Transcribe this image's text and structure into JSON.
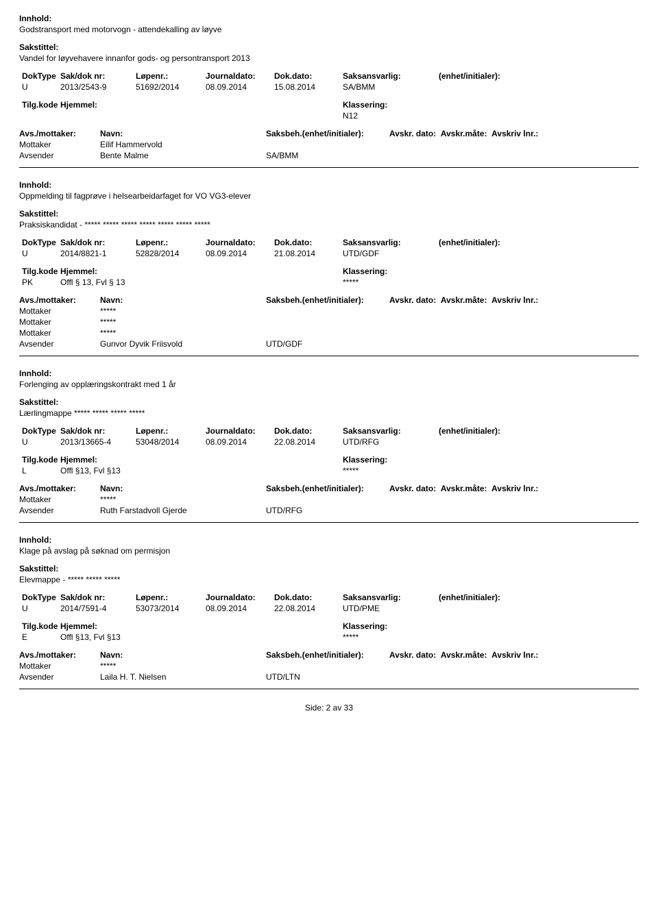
{
  "labels": {
    "innhold": "Innhold:",
    "sakstittel": "Sakstittel:",
    "doktype": "DokType",
    "sakdoknr": "Sak/dok nr:",
    "lopenr": "Løpenr.:",
    "journaldato": "Journaldato:",
    "dokdato": "Dok.dato:",
    "saksansvarlig": "Saksansvarlig:",
    "enhet": "(enhet/initialer):",
    "tilgkode": "Tilg.kode",
    "hjemmel": "Hjemmel:",
    "klassering": "Klassering:",
    "avsmottaker": "Avs./mottaker:",
    "navn": "Navn:",
    "saksbeh": "Saksbeh.(enhet/initialer):",
    "avskrdato": "Avskr. dato:",
    "avskrmate": "Avskr.måte:",
    "avskrivlnr": "Avskriv lnr.:",
    "mottaker": "Mottaker",
    "avsender": "Avsender"
  },
  "entries": [
    {
      "innhold": "Godstransport med motorvogn - attendekalling av løyve",
      "sakstittel": "Vandel for løyvehavere innanfor gods- og persontransport 2013",
      "doktype": "U",
      "sakdoknr": "2013/2543-9",
      "lopenr": "51692/2014",
      "journaldato": "08.09.2014",
      "dokdato": "15.08.2014",
      "saksansvarlig": "SA/BMM",
      "tilgkode": "",
      "hjemmel": "",
      "klassering": "N12",
      "parties": [
        {
          "role": "Mottaker",
          "name": "Eilif Hammervold",
          "saksbeh": ""
        },
        {
          "role": "Avsender",
          "name": "Bente Malme",
          "saksbeh": "SA/BMM"
        }
      ]
    },
    {
      "innhold": "Oppmelding til fagprøve i helsearbeidarfaget for VO VG3-elever",
      "sakstittel": "Praksiskandidat - ***** ***** ***** ***** ***** ***** *****",
      "doktype": "U",
      "sakdoknr": "2014/8821-1",
      "lopenr": "52828/2014",
      "journaldato": "08.09.2014",
      "dokdato": "21.08.2014",
      "saksansvarlig": "UTD/GDF",
      "tilgkode": "PK",
      "hjemmel": "Offl § 13, Fvl § 13",
      "klassering": "*****",
      "parties": [
        {
          "role": "Mottaker",
          "name": "*****",
          "saksbeh": ""
        },
        {
          "role": "Mottaker",
          "name": "*****",
          "saksbeh": ""
        },
        {
          "role": "Mottaker",
          "name": "*****",
          "saksbeh": ""
        },
        {
          "role": "Avsender",
          "name": "Gunvor Dyvik Friisvold",
          "saksbeh": "UTD/GDF"
        }
      ]
    },
    {
      "innhold": "Forlenging av opplæringskontrakt med 1 år",
      "sakstittel": "Lærlingmappe ***** ***** ***** *****",
      "doktype": "U",
      "sakdoknr": "2013/13665-4",
      "lopenr": "53048/2014",
      "journaldato": "08.09.2014",
      "dokdato": "22.08.2014",
      "saksansvarlig": "UTD/RFG",
      "tilgkode": "L",
      "hjemmel": "Offl §13, Fvl §13",
      "klassering": "*****",
      "parties": [
        {
          "role": "Mottaker",
          "name": "*****",
          "saksbeh": ""
        },
        {
          "role": "Avsender",
          "name": "Ruth Farstadvoll Gjerde",
          "saksbeh": "UTD/RFG"
        }
      ]
    },
    {
      "innhold": "Klage på avslag på søknad om permisjon",
      "sakstittel": "Elevmappe - ***** ***** *****",
      "doktype": "U",
      "sakdoknr": "2014/7591-4",
      "lopenr": "53073/2014",
      "journaldato": "08.09.2014",
      "dokdato": "22.08.2014",
      "saksansvarlig": "UTD/PME",
      "tilgkode": "E",
      "hjemmel": "Offl §13, Fvl §13",
      "klassering": "*****",
      "parties": [
        {
          "role": "Mottaker",
          "name": "*****",
          "saksbeh": ""
        },
        {
          "role": "Avsender",
          "name": "Laila H. T. Nielsen",
          "saksbeh": "UTD/LTN"
        }
      ]
    }
  ],
  "footer": "Side: 2 av 33"
}
